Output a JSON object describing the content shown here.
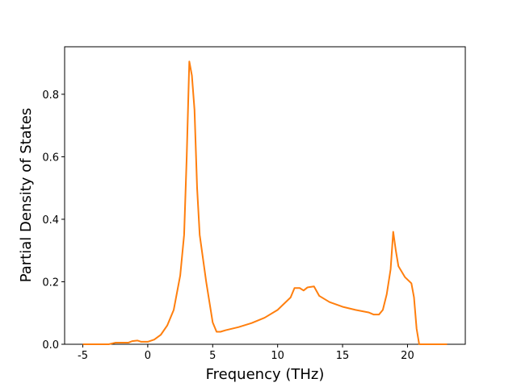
{
  "chart_data": {
    "type": "line",
    "xlabel": "Frequency (THz)",
    "ylabel": "Partial Density of States",
    "xlim": [
      -6.4,
      24.45
    ],
    "ylim": [
      0,
      0.952
    ],
    "xticks": [
      -5,
      0,
      5,
      10,
      15,
      20
    ],
    "yticks": [
      {
        "value": 0,
        "label": "0.0"
      },
      0.2,
      0.4,
      0.6,
      0.8
    ],
    "series": [
      {
        "color": "#ff7f0e",
        "x": [
          -5,
          -3,
          -2.5,
          -2,
          -1.5,
          -1.2,
          -0.8,
          -0.5,
          0,
          0.5,
          1,
          1.5,
          2,
          2.5,
          2.8,
          3.0,
          3.2,
          3.4,
          3.6,
          3.8,
          4.0,
          4.5,
          5,
          5.3,
          5.6,
          6,
          7,
          8,
          9,
          10,
          10.5,
          11,
          11.3,
          11.7,
          12,
          12.3,
          12.8,
          13.2,
          14,
          15,
          16,
          17,
          17.4,
          17.8,
          18.1,
          18.4,
          18.7,
          18.9,
          19.1,
          19.3,
          19.8,
          20.3,
          20.5,
          20.7,
          20.9,
          23.05
        ],
        "values": [
          0,
          0,
          0.005,
          0.005,
          0.005,
          0.01,
          0.012,
          0.008,
          0.008,
          0.015,
          0.03,
          0.06,
          0.11,
          0.22,
          0.35,
          0.6,
          0.905,
          0.86,
          0.75,
          0.5,
          0.35,
          0.2,
          0.07,
          0.04,
          0.04,
          0.045,
          0.055,
          0.068,
          0.085,
          0.11,
          0.13,
          0.15,
          0.18,
          0.18,
          0.172,
          0.182,
          0.185,
          0.155,
          0.135,
          0.12,
          0.11,
          0.102,
          0.095,
          0.095,
          0.11,
          0.16,
          0.24,
          0.36,
          0.3,
          0.25,
          0.215,
          0.195,
          0.15,
          0.05,
          0,
          0
        ]
      }
    ]
  }
}
